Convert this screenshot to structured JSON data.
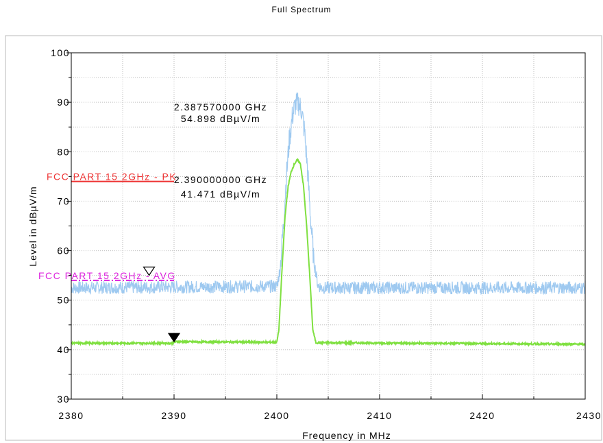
{
  "chart_data": {
    "type": "line",
    "title": "Full Spectrum",
    "xlabel": "Frequency in MHz",
    "ylabel": "Level in dBµV/m",
    "xlim": [
      2380,
      2430
    ],
    "ylim": [
      30,
      100
    ],
    "x_ticks": [
      "2380",
      "2390",
      "2400",
      "2410",
      "2420",
      "2430"
    ],
    "y_ticks": [
      "30",
      "40",
      "50",
      "60",
      "70",
      "80",
      "90",
      "100"
    ],
    "grid": true,
    "series": [
      {
        "color": "#9ec9f0",
        "style": "noisy-band",
        "points": [
          [
            2380,
            52.5
          ],
          [
            2400.0,
            52.8
          ],
          [
            2400.3,
            56
          ],
          [
            2400.6,
            64
          ],
          [
            2400.9,
            74
          ],
          [
            2401.2,
            82
          ],
          [
            2401.5,
            87
          ],
          [
            2401.8,
            89.5
          ],
          [
            2402.1,
            89.8
          ],
          [
            2402.4,
            88.5
          ],
          [
            2402.7,
            84
          ],
          [
            2403.0,
            76
          ],
          [
            2403.3,
            66
          ],
          [
            2403.6,
            58
          ],
          [
            2404.0,
            53
          ],
          [
            2404.4,
            52.5
          ],
          [
            2430,
            52.5
          ]
        ]
      },
      {
        "color": "#7fe040",
        "style": "line",
        "points": [
          [
            2380,
            41.3
          ],
          [
            2389.9,
            41.3
          ],
          [
            2390.1,
            41.6
          ],
          [
            2400.0,
            41.5
          ],
          [
            2400.2,
            44
          ],
          [
            2400.5,
            56
          ],
          [
            2400.8,
            67
          ],
          [
            2401.1,
            73
          ],
          [
            2401.4,
            76
          ],
          [
            2401.7,
            77.5
          ],
          [
            2402.0,
            78.4
          ],
          [
            2402.3,
            77.5
          ],
          [
            2402.6,
            73
          ],
          [
            2402.9,
            65
          ],
          [
            2403.2,
            55
          ],
          [
            2403.5,
            44
          ],
          [
            2403.8,
            41.4
          ],
          [
            2430,
            41.1
          ]
        ]
      }
    ],
    "limits": [
      {
        "label": "FCC PART 15 2GHz - PK",
        "value": 74,
        "x_start": 2380,
        "x_end": 2390,
        "color": "#ee3333",
        "dash": false
      },
      {
        "label": "FCC PART 15 2GHz - AVG",
        "value": 54,
        "x_start": 2380,
        "x_end": 2390,
        "color": "#dd22dd",
        "dash": true
      }
    ],
    "markers": [
      {
        "freq_text": "2.387570000 GHz",
        "level_text": "54.898 dBµV/m",
        "x": 2387.57,
        "y": 54.898,
        "filled": false
      },
      {
        "freq_text": "2.390000000 GHz",
        "level_text": "41.471 dBµV/m",
        "x": 2390.0,
        "y": 41.471,
        "filled": true
      }
    ]
  }
}
